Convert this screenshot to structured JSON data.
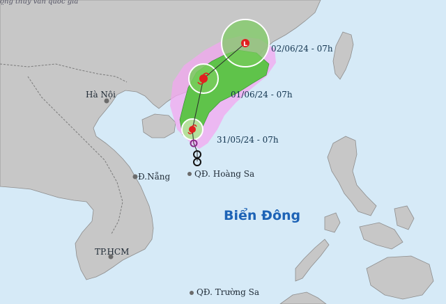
{
  "header_text": "ọ̣ng thủy văn quốc gia",
  "places": {
    "hanoi": "Hà Nội",
    "danang": "Đ.Nẵng",
    "hcm": "TP.HCM",
    "hoangsa": "QĐ. Hoàng Sa",
    "truongsa": "QĐ. Trường Sa"
  },
  "sea_name": "Biển Đông",
  "forecast_times": {
    "t0": "31/05/24 - 07h",
    "t1": "01/06/24 - 07h",
    "t2": "02/06/24 - 07h"
  },
  "colors": {
    "sea": "#d6eaf7",
    "land": "#c7c7c7",
    "danger_zone": "#f3a7f0",
    "uncertainty_cone": "#5fc34a",
    "storm_marker": "#e02020",
    "sea_label": "#1d63b6"
  },
  "icons": {
    "storm": "storm-symbol-icon",
    "depression": "tropical-depression-icon",
    "city": "city-dot-icon"
  }
}
